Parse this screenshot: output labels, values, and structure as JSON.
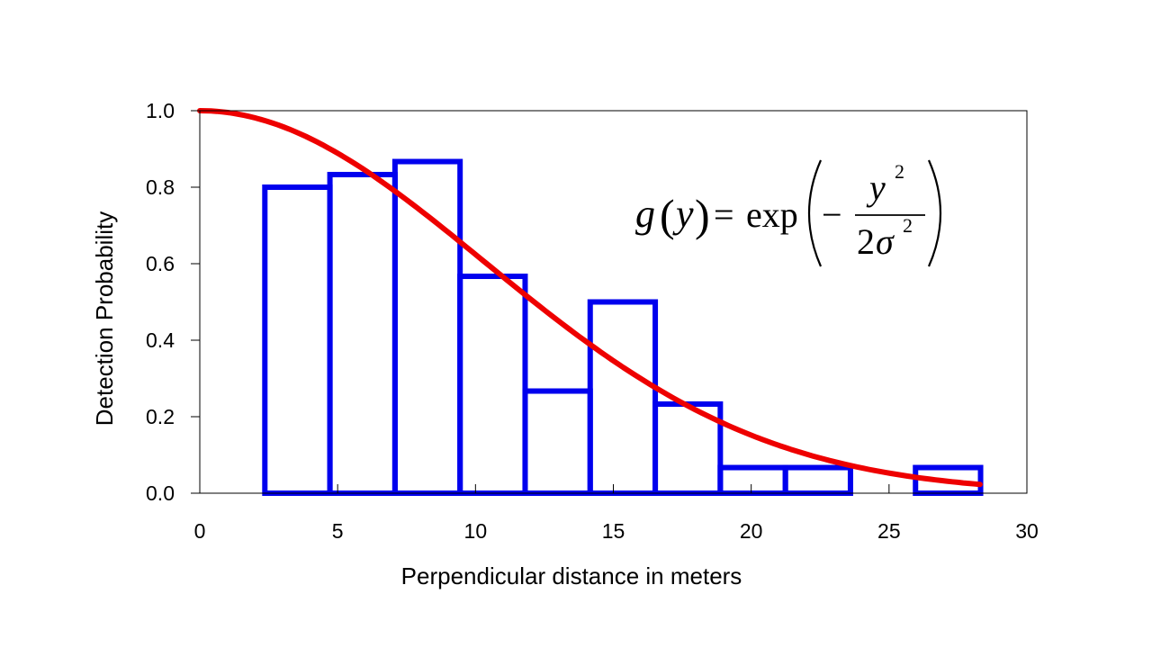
{
  "chart_data": {
    "type": "bar",
    "title": "",
    "xlabel": "Perpendicular distance in meters",
    "ylabel": "Detection Probability",
    "xlim": [
      0,
      30
    ],
    "ylim": [
      0,
      1.0
    ],
    "xticks": [
      "0",
      "5",
      "10",
      "15",
      "20",
      "25",
      "30"
    ],
    "yticks": [
      "0.0",
      "0.2",
      "0.4",
      "0.6",
      "0.8",
      "1.0"
    ],
    "grid": false,
    "bar_color": "#0000ee",
    "curve_color": "#ee0000",
    "series": [
      {
        "kind": "histogram",
        "bin_edges": [
          2.36,
          4.72,
          7.08,
          9.44,
          11.8,
          14.16,
          16.52,
          18.88,
          21.24,
          23.6,
          25.96,
          28.32
        ],
        "values": [
          0.8,
          0.833,
          0.867,
          0.567,
          0.267,
          0.5,
          0.233,
          0.067,
          0.067,
          0.0,
          0.067
        ]
      },
      {
        "kind": "curve",
        "function": "half-normal",
        "sigma": 10.3,
        "x_range": [
          0,
          28.3
        ]
      }
    ],
    "annotation": {
      "g": "g",
      "y": "y",
      "equals": "=",
      "exp": "exp",
      "minus": "−",
      "numerator": "y",
      "exponent": "2",
      "denominator_two": "2",
      "sigma": "σ"
    }
  }
}
